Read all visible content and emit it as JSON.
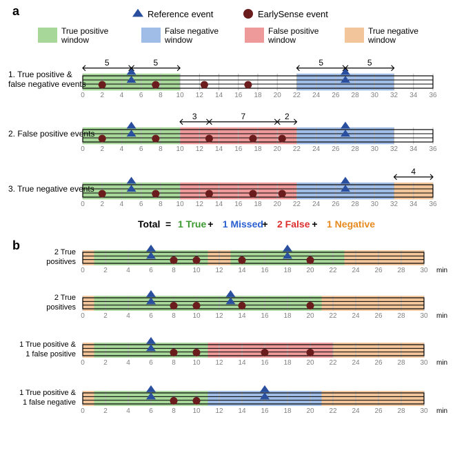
{
  "global": {
    "font_family": "Helvetica, Arial, sans-serif",
    "font_size_label": 12,
    "font_size_small": 10,
    "font_size_panel_letter": 18,
    "panel_letter_weight": "bold",
    "background": "#ffffff",
    "grid_line_color": "#bdbdbd",
    "timeline_outline_color": "#000000",
    "timeline_h_line_color": "#000000",
    "tick_text_color": "#808080"
  },
  "legend": {
    "marker_ref": {
      "shape": "triangle",
      "fill": "#2a4f9e",
      "size": 12,
      "label": "Reference event"
    },
    "marker_es": {
      "shape": "circle",
      "fill": "#6b1d1d",
      "size": 10,
      "label": "EarlySense event"
    },
    "swatches": [
      {
        "fill": "#a7d89a",
        "label": "True positive window"
      },
      {
        "fill": "#9fbde6",
        "label": "False negative window"
      },
      {
        "fill": "#ef9a9a",
        "label": "False positive window"
      },
      {
        "fill": "#f2c69a",
        "label": "True negative window"
      }
    ]
  },
  "panelA": {
    "letter": "a",
    "min_label_step": 2,
    "rows": [
      {
        "name": "1. True positive & false negative events",
        "xmax": 36,
        "tick_step": 2,
        "windows": [
          {
            "from": 0,
            "to": 10,
            "fill": "#a7d89a"
          },
          {
            "from": 22,
            "to": 32,
            "fill": "#9fbde6"
          }
        ],
        "ref_events": [
          5,
          27
        ],
        "es_events": [
          2,
          7.5,
          12.5,
          17
        ],
        "spans": [
          {
            "from": 0,
            "to": 5,
            "label": "5"
          },
          {
            "from": 5,
            "to": 10,
            "label": "5"
          },
          {
            "from": 22,
            "to": 27,
            "label": "5"
          },
          {
            "from": 27,
            "to": 32,
            "label": "5"
          }
        ]
      },
      {
        "name": "2. False positive events",
        "xmax": 36,
        "tick_step": 2,
        "windows": [
          {
            "from": 0,
            "to": 10,
            "fill": "#a7d89a"
          },
          {
            "from": 10,
            "to": 22,
            "fill": "#ef9a9a"
          },
          {
            "from": 22,
            "to": 32,
            "fill": "#9fbde6"
          }
        ],
        "ref_events": [
          5,
          27
        ],
        "es_events": [
          2,
          7.5,
          13,
          17.5,
          20.5
        ],
        "spans": [
          {
            "from": 10,
            "to": 13,
            "label": "3"
          },
          {
            "from": 13,
            "to": 20,
            "label": "7"
          },
          {
            "from": 20,
            "to": 22,
            "label": "2"
          }
        ]
      },
      {
        "name": "3. True negative events",
        "xmax": 36,
        "tick_step": 2,
        "windows": [
          {
            "from": 0,
            "to": 10,
            "fill": "#a7d89a"
          },
          {
            "from": 10,
            "to": 22,
            "fill": "#ef9a9a"
          },
          {
            "from": 22,
            "to": 32,
            "fill": "#9fbde6"
          },
          {
            "from": 32,
            "to": 36,
            "fill": "#f2c69a"
          }
        ],
        "ref_events": [
          5,
          27
        ],
        "es_events": [
          2,
          7.5,
          13,
          17.5,
          20.5
        ],
        "spans": [
          {
            "from": 32,
            "to": 36,
            "label": "4"
          }
        ]
      }
    ],
    "total_line": {
      "prefix": "Total",
      "eq": " = ",
      "parts": [
        {
          "text": "1 True",
          "color": "#3a9a2e"
        },
        {
          "text": " + ",
          "color": "#000000"
        },
        {
          "text": "1 Missed",
          "color": "#2a5fd0"
        },
        {
          "text": " + ",
          "color": "#000000"
        },
        {
          "text": "2 False",
          "color": "#de2e2e"
        },
        {
          "text": " + ",
          "color": "#000000"
        },
        {
          "text": "1 Negative",
          "color": "#e68a1e"
        }
      ]
    }
  },
  "panelB": {
    "letter": "b",
    "unit_suffix": "min",
    "rows": [
      {
        "name": "2 True positives",
        "xmax": 30,
        "tick_step": 2,
        "windows": [
          {
            "from": 0,
            "to": 1,
            "fill": "#f2c69a"
          },
          {
            "from": 1,
            "to": 11,
            "fill": "#a7d89a"
          },
          {
            "from": 11,
            "to": 13,
            "fill": "#f2c69a"
          },
          {
            "from": 13,
            "to": 23,
            "fill": "#a7d89a"
          },
          {
            "from": 23,
            "to": 30,
            "fill": "#f2c69a"
          }
        ],
        "ref_events": [
          6,
          18
        ],
        "es_events": [
          8,
          10,
          14,
          20
        ]
      },
      {
        "name": "2 True positives",
        "xmax": 30,
        "tick_step": 2,
        "windows": [
          {
            "from": 0,
            "to": 1,
            "fill": "#f2c69a"
          },
          {
            "from": 1,
            "to": 21,
            "fill": "#a7d89a"
          },
          {
            "from": 21,
            "to": 30,
            "fill": "#f2c69a"
          }
        ],
        "ref_events": [
          6,
          13
        ],
        "es_events": [
          8,
          10,
          14,
          20
        ]
      },
      {
        "name": "1 True positive & 1 false positive",
        "xmax": 30,
        "tick_step": 2,
        "windows": [
          {
            "from": 0,
            "to": 1,
            "fill": "#f2c69a"
          },
          {
            "from": 1,
            "to": 11,
            "fill": "#a7d89a"
          },
          {
            "from": 11,
            "to": 22,
            "fill": "#ef9a9a"
          },
          {
            "from": 22,
            "to": 30,
            "fill": "#f2c69a"
          }
        ],
        "ref_events": [
          6
        ],
        "es_events": [
          8,
          10,
          16,
          20
        ]
      },
      {
        "name": "1 True positive & 1 false negative",
        "xmax": 30,
        "tick_step": 2,
        "windows": [
          {
            "from": 0,
            "to": 1,
            "fill": "#f2c69a"
          },
          {
            "from": 1,
            "to": 11,
            "fill": "#a7d89a"
          },
          {
            "from": 11,
            "to": 21,
            "fill": "#9fbde6"
          },
          {
            "from": 21,
            "to": 30,
            "fill": "#f2c69a"
          }
        ],
        "ref_events": [
          6,
          16
        ],
        "es_events": [
          8,
          10
        ]
      }
    ]
  }
}
